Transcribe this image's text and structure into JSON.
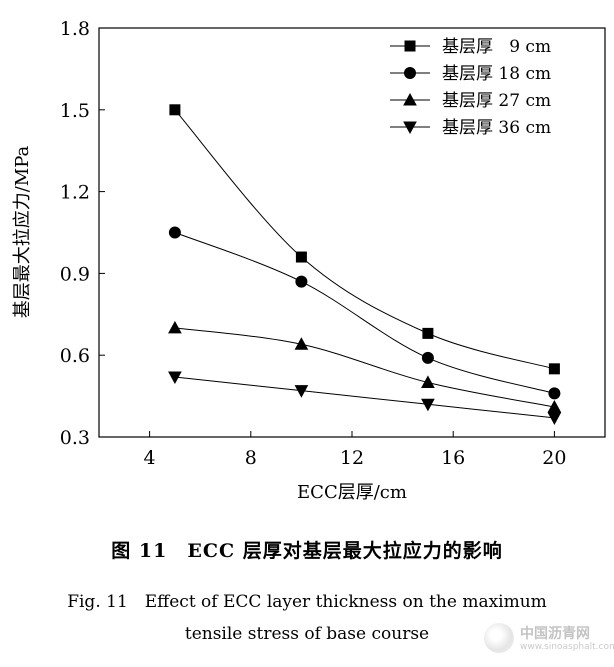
{
  "chart_data": {
    "type": "line",
    "title": "",
    "xlabel": "ECC层厚/cm",
    "ylabel": "基层最大拉应力/MPa",
    "xlim": [
      2,
      22
    ],
    "ylim": [
      0.3,
      1.8
    ],
    "xticks": [
      4,
      8,
      12,
      16,
      20
    ],
    "yticks": [
      0.3,
      0.6,
      0.9,
      1.2,
      1.5,
      1.8
    ],
    "xtick_labels": [
      "4",
      "8",
      "12",
      "16",
      "20"
    ],
    "ytick_labels": [
      "0.3",
      "0.6",
      "0.9",
      "1.2",
      "1.5",
      "1.8"
    ],
    "legend_position": "top-right",
    "x": [
      5,
      10,
      15,
      20
    ],
    "series": [
      {
        "name": "基层厚   9 cm",
        "marker": "square",
        "values": [
          1.5,
          0.96,
          0.68,
          0.55
        ]
      },
      {
        "name": "基层厚 18 cm",
        "marker": "circle",
        "values": [
          1.05,
          0.87,
          0.59,
          0.46
        ]
      },
      {
        "name": "基层厚 27 cm",
        "marker": "triangle-up",
        "values": [
          0.7,
          0.64,
          0.5,
          0.41
        ]
      },
      {
        "name": "基层厚 36 cm",
        "marker": "triangle-down",
        "values": [
          0.52,
          0.47,
          0.42,
          0.37
        ]
      }
    ]
  },
  "caption": {
    "cn": "图 11　ECC 层厚对基层最大拉应力的影响",
    "en_line1": "Fig. 11　Effect of ECC layer thickness on the maximum",
    "en_line2": "tensile stress of base course"
  },
  "watermark": {
    "name": "中国沥青网",
    "url": "www.sinoasphalt.com"
  }
}
